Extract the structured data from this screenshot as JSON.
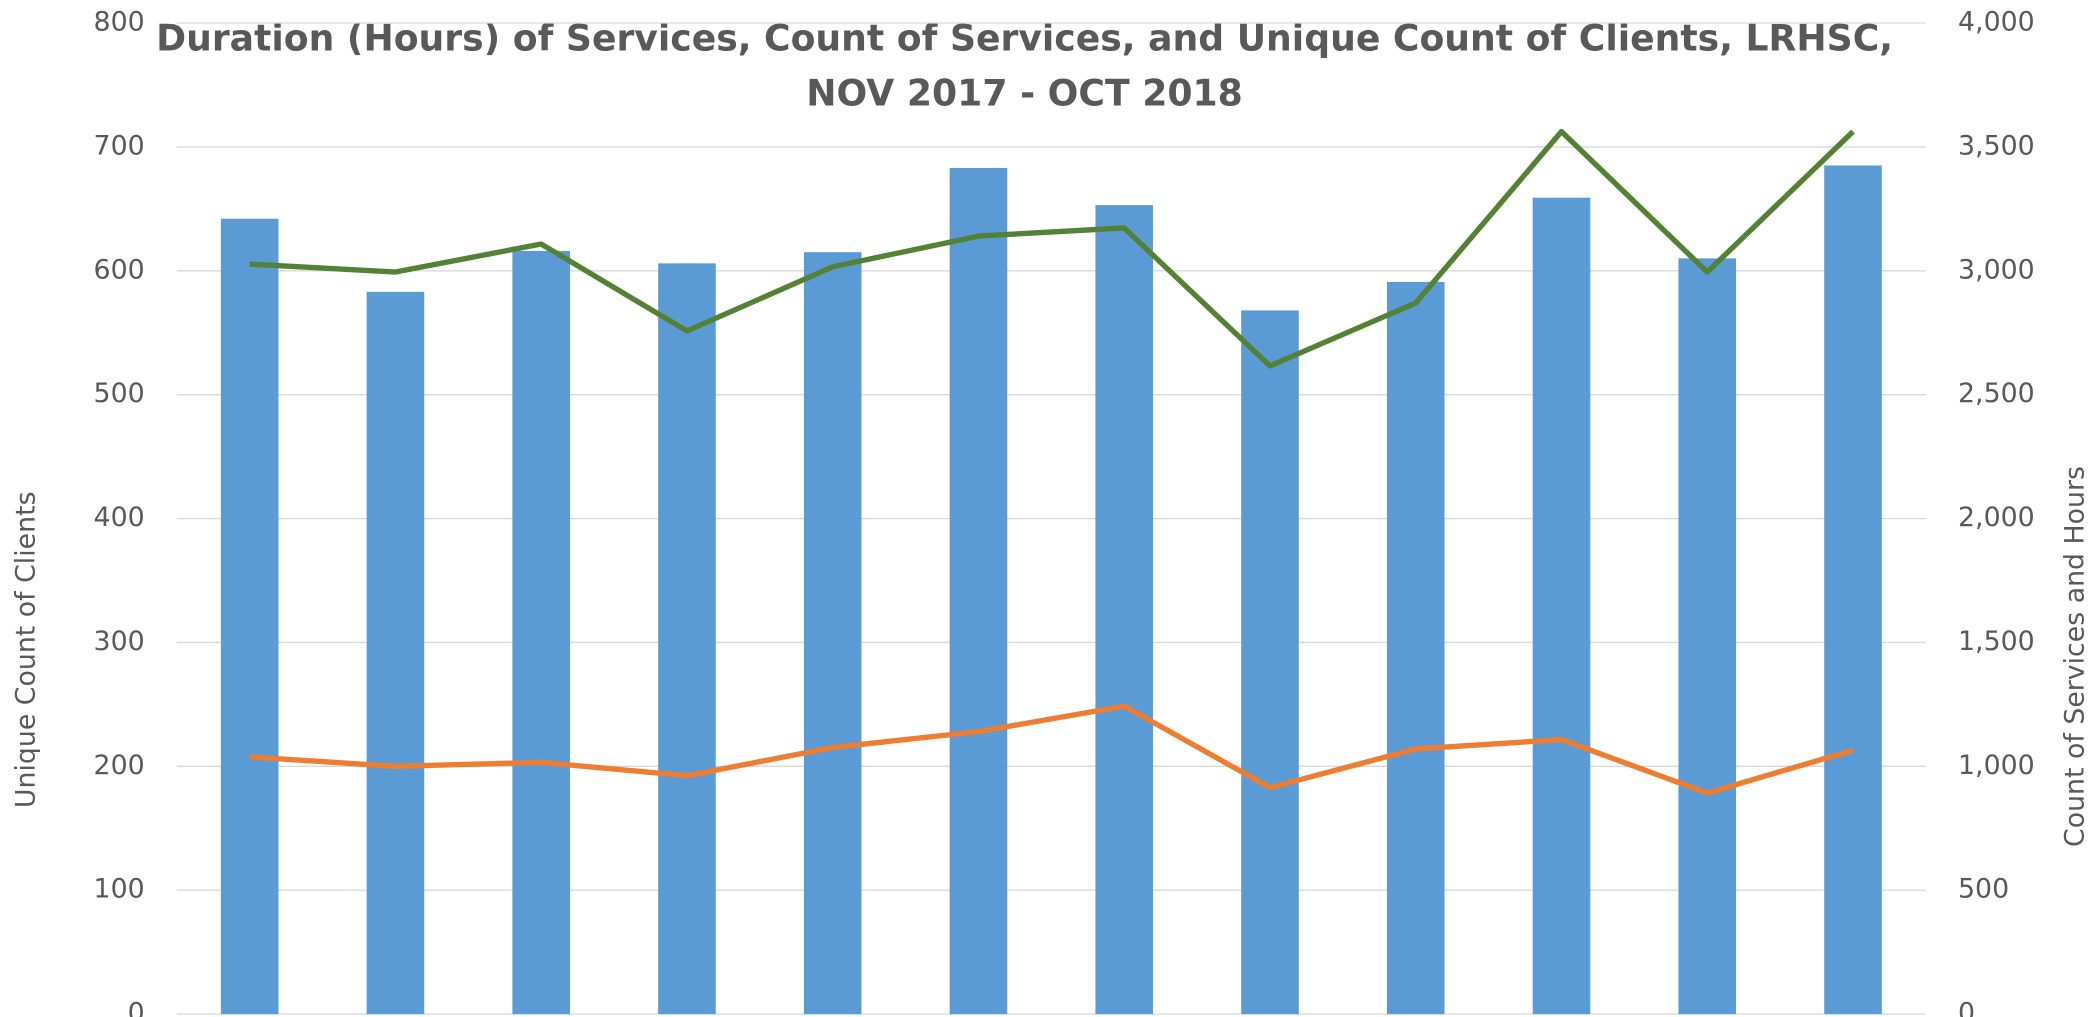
{
  "chart_data": {
    "type": "bar",
    "title": [
      "Duration (Hours) of Services, Count of Services, and Unique Count of Clients, LRHSC,",
      "NOV 2017 - OCT 2018"
    ],
    "y_label": "Unique Count of Clients",
    "y2_label": "Count of Services and Hours",
    "categories": [
      null,
      null,
      null,
      null,
      null,
      null,
      null,
      null,
      null,
      null,
      null,
      null
    ],
    "series": [
      {
        "type": "bar",
        "color": "#5b9bd5",
        "values": [
          642,
          583,
          616,
          606,
          615,
          683,
          653,
          568,
          591,
          659,
          610,
          685
        ]
      },
      {
        "type": "line",
        "axis": "y2",
        "color": "#ed7d31",
        "values": [
          1038,
          1000,
          1016,
          962,
          1076,
          1140,
          1243,
          914,
          1070,
          1108,
          892,
          1065
        ]
      },
      {
        "type": "line",
        "axis": "y2",
        "color": "#548235",
        "values": [
          3027,
          2995,
          3108,
          2757,
          3016,
          3140,
          3173,
          2616,
          2870,
          3562,
          2995,
          3562
        ]
      }
    ],
    "ylim": [
      0,
      800
    ],
    "yticks": [
      0,
      100,
      200,
      300,
      400,
      500,
      600,
      700,
      800
    ],
    "y2lim": [
      0,
      4000
    ],
    "y2ticks": [
      0,
      500,
      {
        "value": 1000,
        "label": "1,000"
      },
      {
        "value": 1500,
        "label": "1,500"
      },
      {
        "value": 2000,
        "label": "2,000"
      },
      {
        "value": 2500,
        "label": "2,500"
      },
      {
        "value": 3000,
        "label": "3,000"
      },
      {
        "value": 3500,
        "label": "3,500"
      },
      {
        "value": 4000,
        "label": "4,000"
      }
    ],
    "grid": true
  }
}
